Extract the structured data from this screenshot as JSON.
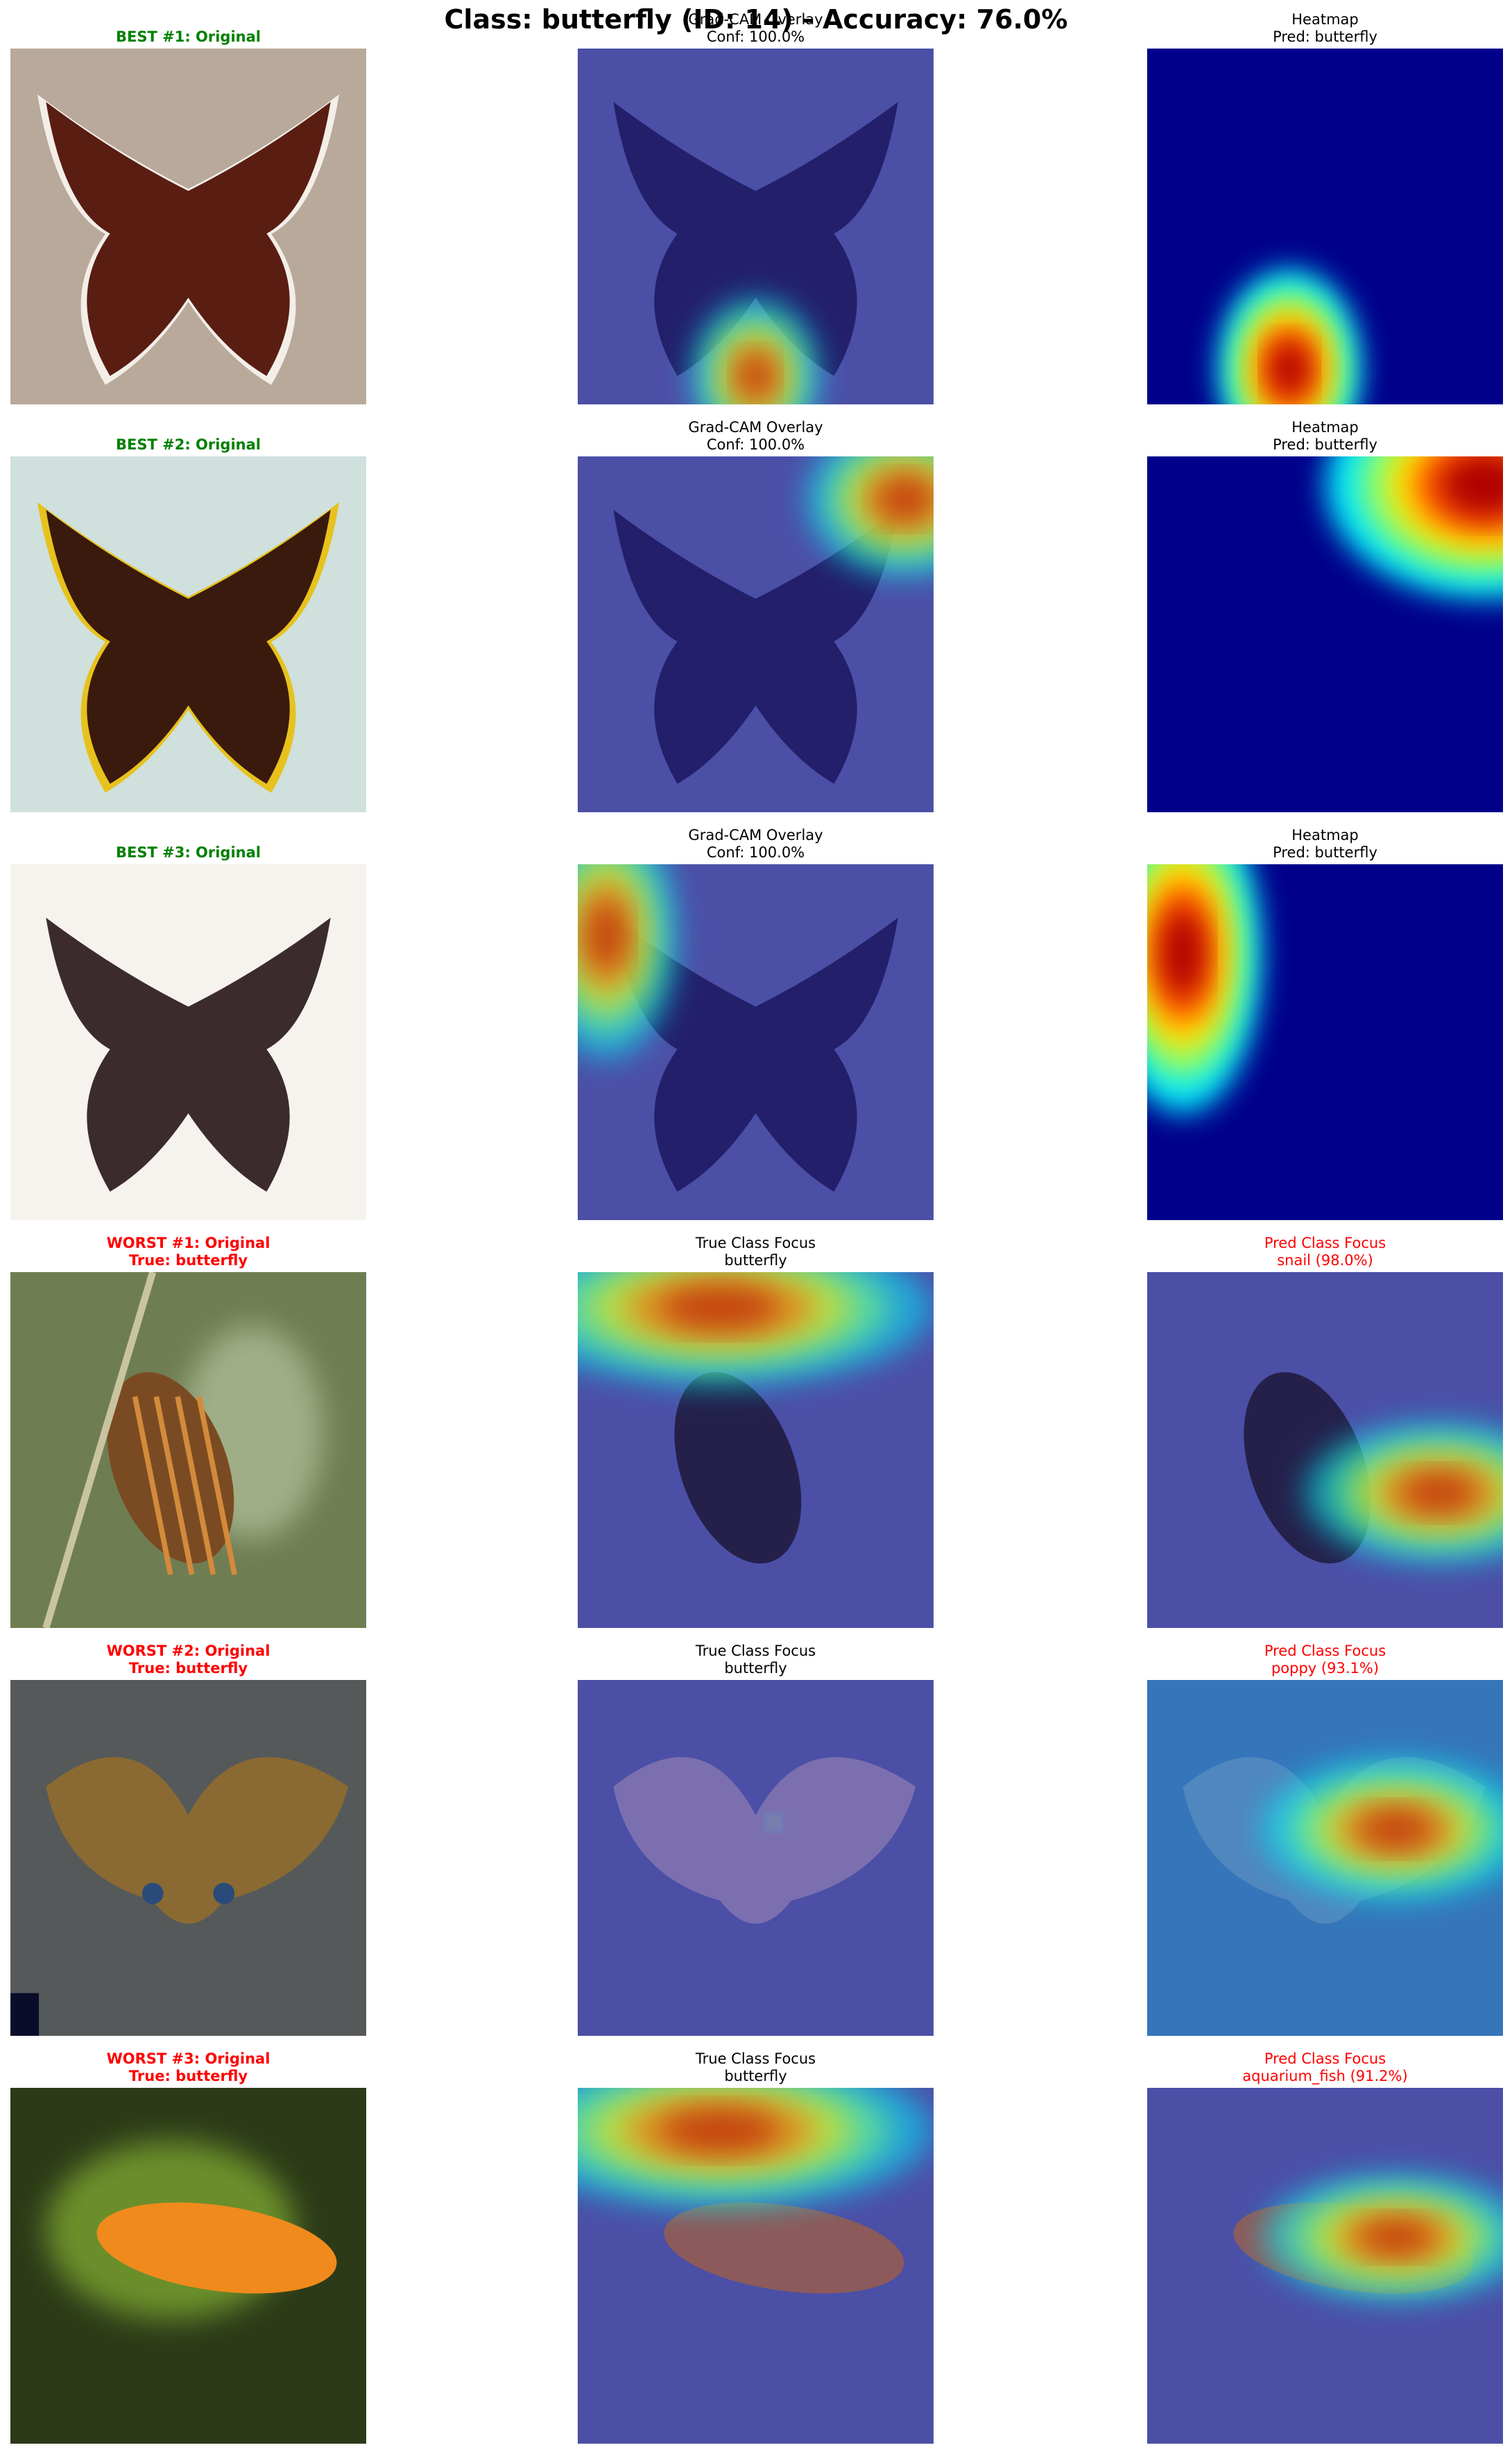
{
  "suptitle": "Class: butterfly (ID: 14) - Accuracy: 76.0%",
  "colors": {
    "best": "#008000",
    "worst": "#ff0000",
    "normal": "#000000"
  },
  "rows": [
    {
      "panels": [
        {
          "lines": [
            "BEST #1: Original"
          ],
          "color": "best",
          "bold": true,
          "image": "original-butterfly-photo"
        },
        {
          "lines": [
            "Grad-CAM Overlay",
            "Conf: 100.0%"
          ],
          "color": "normal",
          "bold": false,
          "image": "gradcam-overlay-image"
        },
        {
          "lines": [
            "Heatmap",
            "Pred: butterfly"
          ],
          "color": "normal",
          "bold": false,
          "image": "heatmap-image"
        }
      ]
    },
    {
      "panels": [
        {
          "lines": [
            "BEST #2: Original"
          ],
          "color": "best",
          "bold": true,
          "image": "original-butterfly-photo"
        },
        {
          "lines": [
            "Grad-CAM Overlay",
            "Conf: 100.0%"
          ],
          "color": "normal",
          "bold": false,
          "image": "gradcam-overlay-image"
        },
        {
          "lines": [
            "Heatmap",
            "Pred: butterfly"
          ],
          "color": "normal",
          "bold": false,
          "image": "heatmap-image"
        }
      ]
    },
    {
      "panels": [
        {
          "lines": [
            "BEST #3: Original"
          ],
          "color": "best",
          "bold": true,
          "image": "original-butterfly-photo"
        },
        {
          "lines": [
            "Grad-CAM Overlay",
            "Conf: 100.0%"
          ],
          "color": "normal",
          "bold": false,
          "image": "gradcam-overlay-image"
        },
        {
          "lines": [
            "Heatmap",
            "Pred: butterfly"
          ],
          "color": "normal",
          "bold": false,
          "image": "heatmap-image"
        }
      ]
    },
    {
      "panels": [
        {
          "lines": [
            "WORST #1: Original",
            "True: butterfly"
          ],
          "color": "worst",
          "bold": true,
          "image": "original-photo"
        },
        {
          "lines": [
            "True Class Focus",
            "butterfly"
          ],
          "color": "normal",
          "bold": false,
          "image": "true-class-overlay"
        },
        {
          "lines": [
            "Pred Class Focus",
            "snail (98.0%)"
          ],
          "color": "worst",
          "bold": false,
          "image": "pred-class-overlay"
        }
      ]
    },
    {
      "panels": [
        {
          "lines": [
            "WORST #2: Original",
            "True: butterfly"
          ],
          "color": "worst",
          "bold": true,
          "image": "original-photo"
        },
        {
          "lines": [
            "True Class Focus",
            "butterfly"
          ],
          "color": "normal",
          "bold": false,
          "image": "true-class-overlay"
        },
        {
          "lines": [
            "Pred Class Focus",
            "poppy (93.1%)"
          ],
          "color": "worst",
          "bold": false,
          "image": "pred-class-overlay"
        }
      ]
    },
    {
      "panels": [
        {
          "lines": [
            "WORST #3: Original",
            "True: butterfly"
          ],
          "color": "worst",
          "bold": true,
          "image": "original-photo"
        },
        {
          "lines": [
            "True Class Focus",
            "butterfly"
          ],
          "color": "normal",
          "bold": false,
          "image": "true-class-overlay"
        },
        {
          "lines": [
            "Pred Class Focus",
            "aquarium_fish (91.2%)"
          ],
          "color": "worst",
          "bold": false,
          "image": "pred-class-overlay"
        }
      ]
    }
  ]
}
